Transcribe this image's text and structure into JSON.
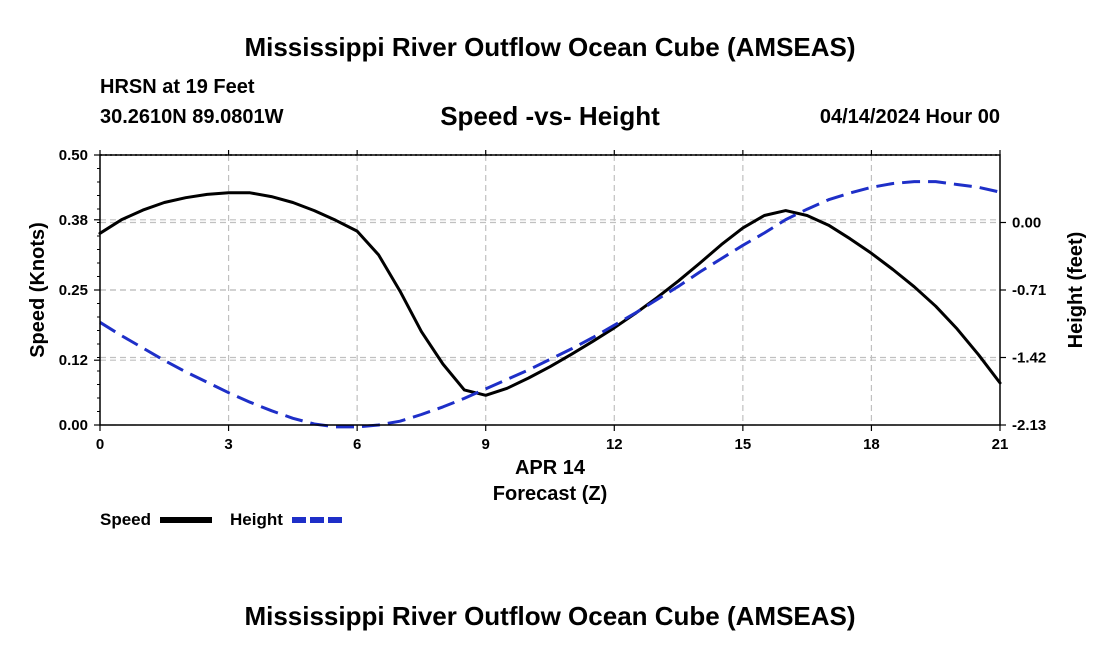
{
  "header": {
    "title": "Mississippi River Outflow Ocean Cube (AMSEAS)",
    "station": "HRSN at 19 Feet",
    "coords": "30.2610N  89.0801W",
    "subtitle": "Speed -vs- Height",
    "datetime": "04/14/2024 Hour 00"
  },
  "footer": {
    "title": "Mississippi River Outflow Ocean Cube (AMSEAS)"
  },
  "colors": {
    "speed": "#000000",
    "height": "#1e2fc8",
    "grid": "#c0c0c0"
  },
  "chart_data": {
    "type": "line",
    "title": "Speed -vs- Height",
    "xlabel_date": "APR 14",
    "xlabel": "Forecast (Z)",
    "ylabel": "Speed (Knots)",
    "y2label": "Height (feet)",
    "xlim": [
      0,
      21
    ],
    "ylim": [
      0,
      0.5
    ],
    "y2lim": [
      -2.13,
      0.71
    ],
    "x_ticks": [
      0,
      3,
      6,
      9,
      12,
      15,
      18,
      21
    ],
    "y_ticks": [
      0.0,
      0.12,
      0.25,
      0.38,
      0.5
    ],
    "y_tick_labels": [
      "0.00",
      "0.12",
      "0.25",
      "0.38",
      "0.50"
    ],
    "y2_ticks": [
      -2.13,
      -1.42,
      -0.71,
      0.0
    ],
    "y2_tick_labels": [
      "-2.13",
      "-1.42",
      "-0.71",
      "0.00"
    ],
    "legend": [
      {
        "name": "Speed",
        "style": "solid"
      },
      {
        "name": "Height",
        "style": "dashed"
      }
    ],
    "series": [
      {
        "name": "Speed",
        "axis": "left",
        "style": "solid",
        "x": [
          0,
          0.5,
          1,
          1.5,
          2,
          2.5,
          3,
          3.5,
          4,
          4.5,
          5,
          5.5,
          6,
          6.5,
          7,
          7.5,
          8,
          8.5,
          9,
          9.5,
          10,
          10.5,
          11,
          11.5,
          12,
          12.5,
          13,
          13.5,
          14,
          14.5,
          15,
          15.5,
          16,
          16.5,
          17,
          17.5,
          18,
          18.5,
          19,
          19.5,
          20,
          20.5,
          21
        ],
        "values": [
          0.355,
          0.38,
          0.398,
          0.412,
          0.421,
          0.427,
          0.43,
          0.43,
          0.423,
          0.412,
          0.397,
          0.379,
          0.359,
          0.315,
          0.248,
          0.173,
          0.113,
          0.065,
          0.055,
          0.068,
          0.087,
          0.108,
          0.131,
          0.155,
          0.18,
          0.207,
          0.236,
          0.267,
          0.3,
          0.334,
          0.365,
          0.388,
          0.397,
          0.388,
          0.37,
          0.345,
          0.318,
          0.288,
          0.256,
          0.22,
          0.178,
          0.13,
          0.078
        ]
      },
      {
        "name": "Height",
        "axis": "right",
        "style": "dashed",
        "x": [
          0,
          0.5,
          1,
          1.5,
          2,
          2.5,
          3,
          3.5,
          4,
          4.5,
          5,
          5.5,
          6,
          6.5,
          7,
          7.5,
          8,
          8.5,
          9,
          9.5,
          10,
          10.5,
          11,
          11.5,
          12,
          12.5,
          13,
          13.5,
          14,
          14.5,
          15,
          15.5,
          16,
          16.5,
          17,
          17.5,
          18,
          18.5,
          19,
          19.5,
          20,
          20.5,
          21
        ],
        "values": [
          -1.05,
          -1.19,
          -1.32,
          -1.45,
          -1.57,
          -1.68,
          -1.79,
          -1.89,
          -1.98,
          -2.06,
          -2.12,
          -2.15,
          -2.15,
          -2.13,
          -2.09,
          -2.02,
          -1.94,
          -1.85,
          -1.75,
          -1.65,
          -1.55,
          -1.44,
          -1.33,
          -1.21,
          -1.08,
          -0.95,
          -0.81,
          -0.67,
          -0.52,
          -0.38,
          -0.24,
          -0.11,
          0.03,
          0.14,
          0.24,
          0.31,
          0.37,
          0.41,
          0.43,
          0.43,
          0.4,
          0.37,
          0.32
        ]
      }
    ]
  }
}
